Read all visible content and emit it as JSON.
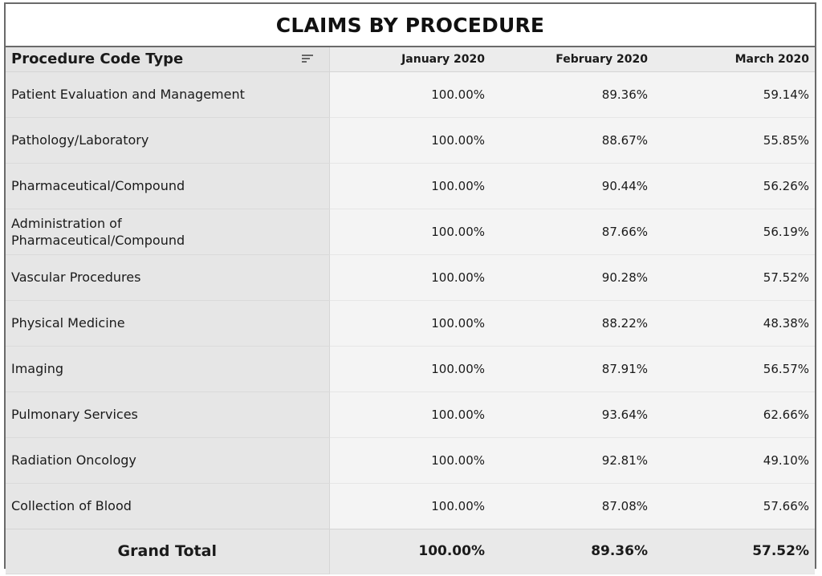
{
  "title": "CLAIMS BY PROCEDURE",
  "header": {
    "col0": "Procedure Code Type",
    "col1": "January 2020",
    "col2": "February 2020",
    "col3": "March 2020"
  },
  "rows": [
    {
      "name": "Patient Evaluation and Management",
      "jan": "100.00%",
      "feb": "89.36%",
      "mar": "59.14%"
    },
    {
      "name": "Pathology/Laboratory",
      "jan": "100.00%",
      "feb": "88.67%",
      "mar": "55.85%"
    },
    {
      "name": "Pharmaceutical/Compound",
      "jan": "100.00%",
      "feb": "90.44%",
      "mar": "56.26%"
    },
    {
      "name": "Administration of",
      "name2": "Pharmaceutical/Compound",
      "jan": "100.00%",
      "feb": "87.66%",
      "mar": "56.19%"
    },
    {
      "name": "Vascular Procedures",
      "jan": "100.00%",
      "feb": "90.28%",
      "mar": "57.52%"
    },
    {
      "name": "Physical Medicine",
      "jan": "100.00%",
      "feb": "88.22%",
      "mar": "48.38%"
    },
    {
      "name": "Imaging",
      "jan": "100.00%",
      "feb": "87.91%",
      "mar": "56.57%"
    },
    {
      "name": "Pulmonary Services",
      "jan": "100.00%",
      "feb": "93.64%",
      "mar": "62.66%"
    },
    {
      "name": "Radiation Oncology",
      "jan": "100.00%",
      "feb": "92.81%",
      "mar": "49.10%"
    },
    {
      "name": "Collection of Blood",
      "jan": "100.00%",
      "feb": "87.08%",
      "mar": "57.66%"
    }
  ],
  "total": {
    "label": "Grand Total",
    "jan": "100.00%",
    "feb": "89.36%",
    "mar": "57.52%"
  }
}
